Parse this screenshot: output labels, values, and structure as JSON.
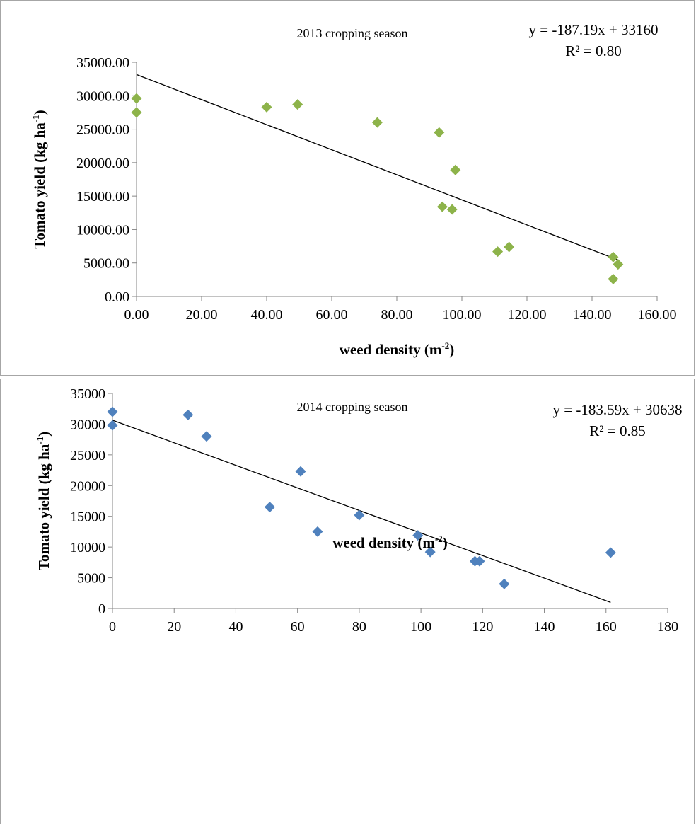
{
  "chart_data": [
    {
      "type": "scatter",
      "title": "2013 cropping season",
      "equation": "y = -187.19x + 33160",
      "r_squared": "R² = 0.80",
      "xlabel": "weed density (m",
      "xlabel_sup": "-2",
      "xlabel_end": ")",
      "ylabel": "Tomato yield (kg ha",
      "ylabel_sup": "-1",
      "ylabel_end": ")",
      "xlim": [
        0,
        160
      ],
      "ylim": [
        0,
        35000
      ],
      "x_ticks": [
        "0.00",
        "20.00",
        "40.00",
        "60.00",
        "80.00",
        "100.00",
        "120.00",
        "140.00",
        "160.00"
      ],
      "y_ticks": [
        "0.00",
        "5000.00",
        "10000.00",
        "15000.00",
        "20000.00",
        "25000.00",
        "30000.00",
        "35000.00"
      ],
      "marker_color": "#8db34a",
      "marker": "diamond",
      "trendline": {
        "slope": -187.19,
        "intercept": 33160,
        "x_range": [
          0,
          148
        ]
      },
      "points": [
        {
          "x": 0,
          "y": 29600
        },
        {
          "x": 0,
          "y": 27500
        },
        {
          "x": 40,
          "y": 28300
        },
        {
          "x": 49.5,
          "y": 28700
        },
        {
          "x": 74,
          "y": 26000
        },
        {
          "x": 93,
          "y": 24500
        },
        {
          "x": 98,
          "y": 18900
        },
        {
          "x": 94,
          "y": 13400
        },
        {
          "x": 97,
          "y": 13000
        },
        {
          "x": 111,
          "y": 6700
        },
        {
          "x": 114.5,
          "y": 7400
        },
        {
          "x": 146.5,
          "y": 5900
        },
        {
          "x": 148,
          "y": 4800
        },
        {
          "x": 146.5,
          "y": 2600
        }
      ]
    },
    {
      "type": "scatter",
      "title": "2014 cropping season",
      "equation": "y = -183.59x + 30638",
      "r_squared": "R² = 0.85",
      "xlabel": "weed density (m",
      "xlabel_sup": "-2",
      "xlabel_end": ")",
      "ylabel": "Tomato yield (kg  ha",
      "ylabel_sup": "-1",
      "ylabel_end": ")",
      "xlim": [
        0,
        180
      ],
      "ylim": [
        0,
        35000
      ],
      "x_ticks": [
        "0",
        "20",
        "40",
        "60",
        "80",
        "100",
        "120",
        "140",
        "160",
        "180"
      ],
      "y_ticks": [
        "0",
        "5000",
        "10000",
        "15000",
        "20000",
        "25000",
        "30000",
        "35000"
      ],
      "marker_color": "#4f81bd",
      "marker": "diamond",
      "trendline": {
        "slope": -183.59,
        "intercept": 30638,
        "x_range": [
          0,
          161.5
        ]
      },
      "points": [
        {
          "x": 0,
          "y": 32000
        },
        {
          "x": 0,
          "y": 29800
        },
        {
          "x": 24.5,
          "y": 31500
        },
        {
          "x": 30.5,
          "y": 28000
        },
        {
          "x": 61,
          "y": 22300
        },
        {
          "x": 51,
          "y": 16500
        },
        {
          "x": 66.5,
          "y": 12500
        },
        {
          "x": 80,
          "y": 15200
        },
        {
          "x": 99,
          "y": 11900
        },
        {
          "x": 103,
          "y": 9200
        },
        {
          "x": 117.5,
          "y": 7700
        },
        {
          "x": 119,
          "y": 7700
        },
        {
          "x": 127,
          "y": 4000
        },
        {
          "x": 161.5,
          "y": 9100
        }
      ]
    }
  ]
}
